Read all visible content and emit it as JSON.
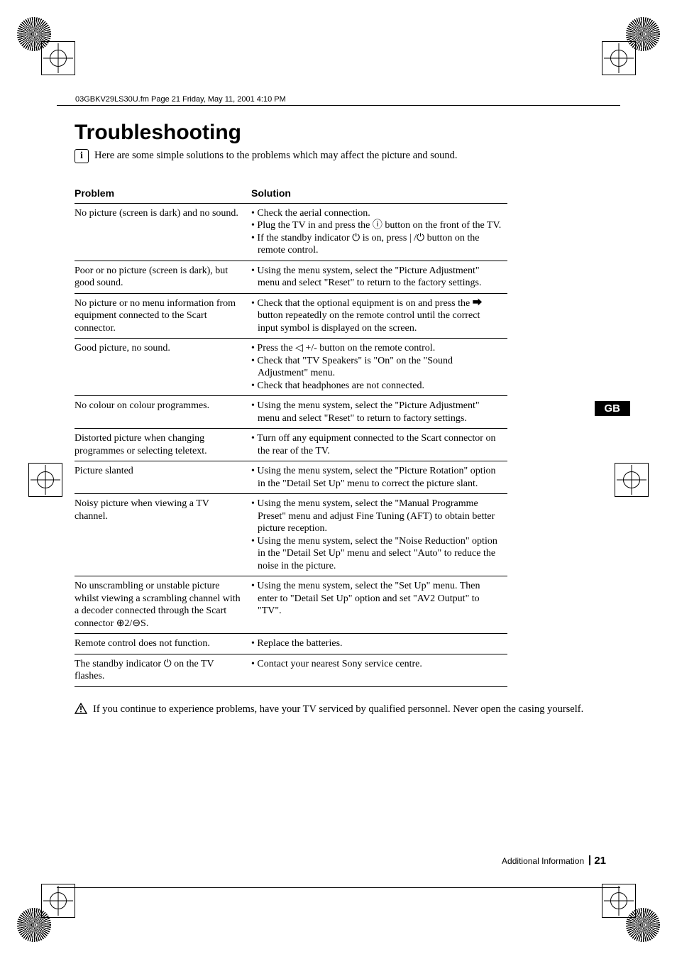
{
  "print": {
    "header_note": "03GBKV29LS30U.fm  Page 21  Friday, May 11, 2001  4:10 PM",
    "tab": "GB",
    "footer_label": "Additional Information",
    "footer_page": "21"
  },
  "title": "Troubleshooting",
  "intro": "Here are some simple solutions to the problems which may affect the picture and sound.",
  "columns": {
    "problem": "Problem",
    "solution": "Solution"
  },
  "rows": [
    {
      "problem": "No picture (screen is dark) and no sound.",
      "solutions": [
        "Check the aerial connection.",
        "Plug the TV in and press the  ⓘ  button on the front of the TV.",
        "If the standby indicator  ⏻  is on, press  | /⏻  button on the remote control."
      ]
    },
    {
      "problem": "Poor or no picture (screen is dark), but good sound.",
      "solutions": [
        "Using the menu system, select the \"Picture Adjustment\" menu and select \"Reset\" to return to the factory settings."
      ]
    },
    {
      "problem": "No picture or no menu information from equipment connected to the Scart connector.",
      "solutions": [
        "Check that the optional equipment is on and press the  ⮕  button repeatedly on the remote control until the correct input symbol is displayed on the screen."
      ]
    },
    {
      "problem": "Good picture, no sound.",
      "solutions": [
        "Press the  ◁ +/- button on the remote control.",
        "Check that \"TV Speakers\" is \"On\" on the \"Sound Adjustment\" menu.",
        "Check that headphones are not connected."
      ]
    },
    {
      "problem": "No colour on colour programmes.",
      "solutions": [
        "Using the menu system, select the \"Picture Adjustment\" menu and select \"Reset\" to return to factory settings."
      ]
    },
    {
      "problem": "Distorted picture when changing programmes or selecting teletext.",
      "solutions": [
        "Turn off any equipment connected to the Scart connector on the rear of the TV."
      ]
    },
    {
      "problem": "Picture slanted",
      "solutions": [
        "Using the menu system, select the \"Picture Rotation\" option in the \"Detail Set Up\" menu to correct the picture slant."
      ]
    },
    {
      "problem": "Noisy picture when viewing a TV channel.",
      "solutions": [
        "Using the menu system, select the \"Manual Programme Preset\" menu and adjust Fine Tuning (AFT) to obtain better picture reception.",
        "Using the menu system, select the \"Noise Reduction\" option in the \"Detail Set Up\" menu and select \"Auto\" to reduce the noise in the picture."
      ]
    },
    {
      "problem": "No unscrambling or unstable picture whilst viewing a scrambling channel with a decoder connected through the Scart connector ⊕2/⊖S.",
      "solutions": [
        "Using the menu system, select the \"Set Up\" menu. Then enter to \"Detail Set Up\" option and set \"AV2 Output\" to \"TV\"."
      ]
    },
    {
      "problem": "Remote control does not function.",
      "solutions": [
        "Replace the batteries."
      ]
    },
    {
      "problem": "The standby indicator  ⏻  on the TV flashes.",
      "solutions": [
        "Contact your nearest Sony service centre."
      ]
    }
  ],
  "warning": "If you continue to experience problems, have your TV serviced by qualified personnel. Never open the casing yourself."
}
